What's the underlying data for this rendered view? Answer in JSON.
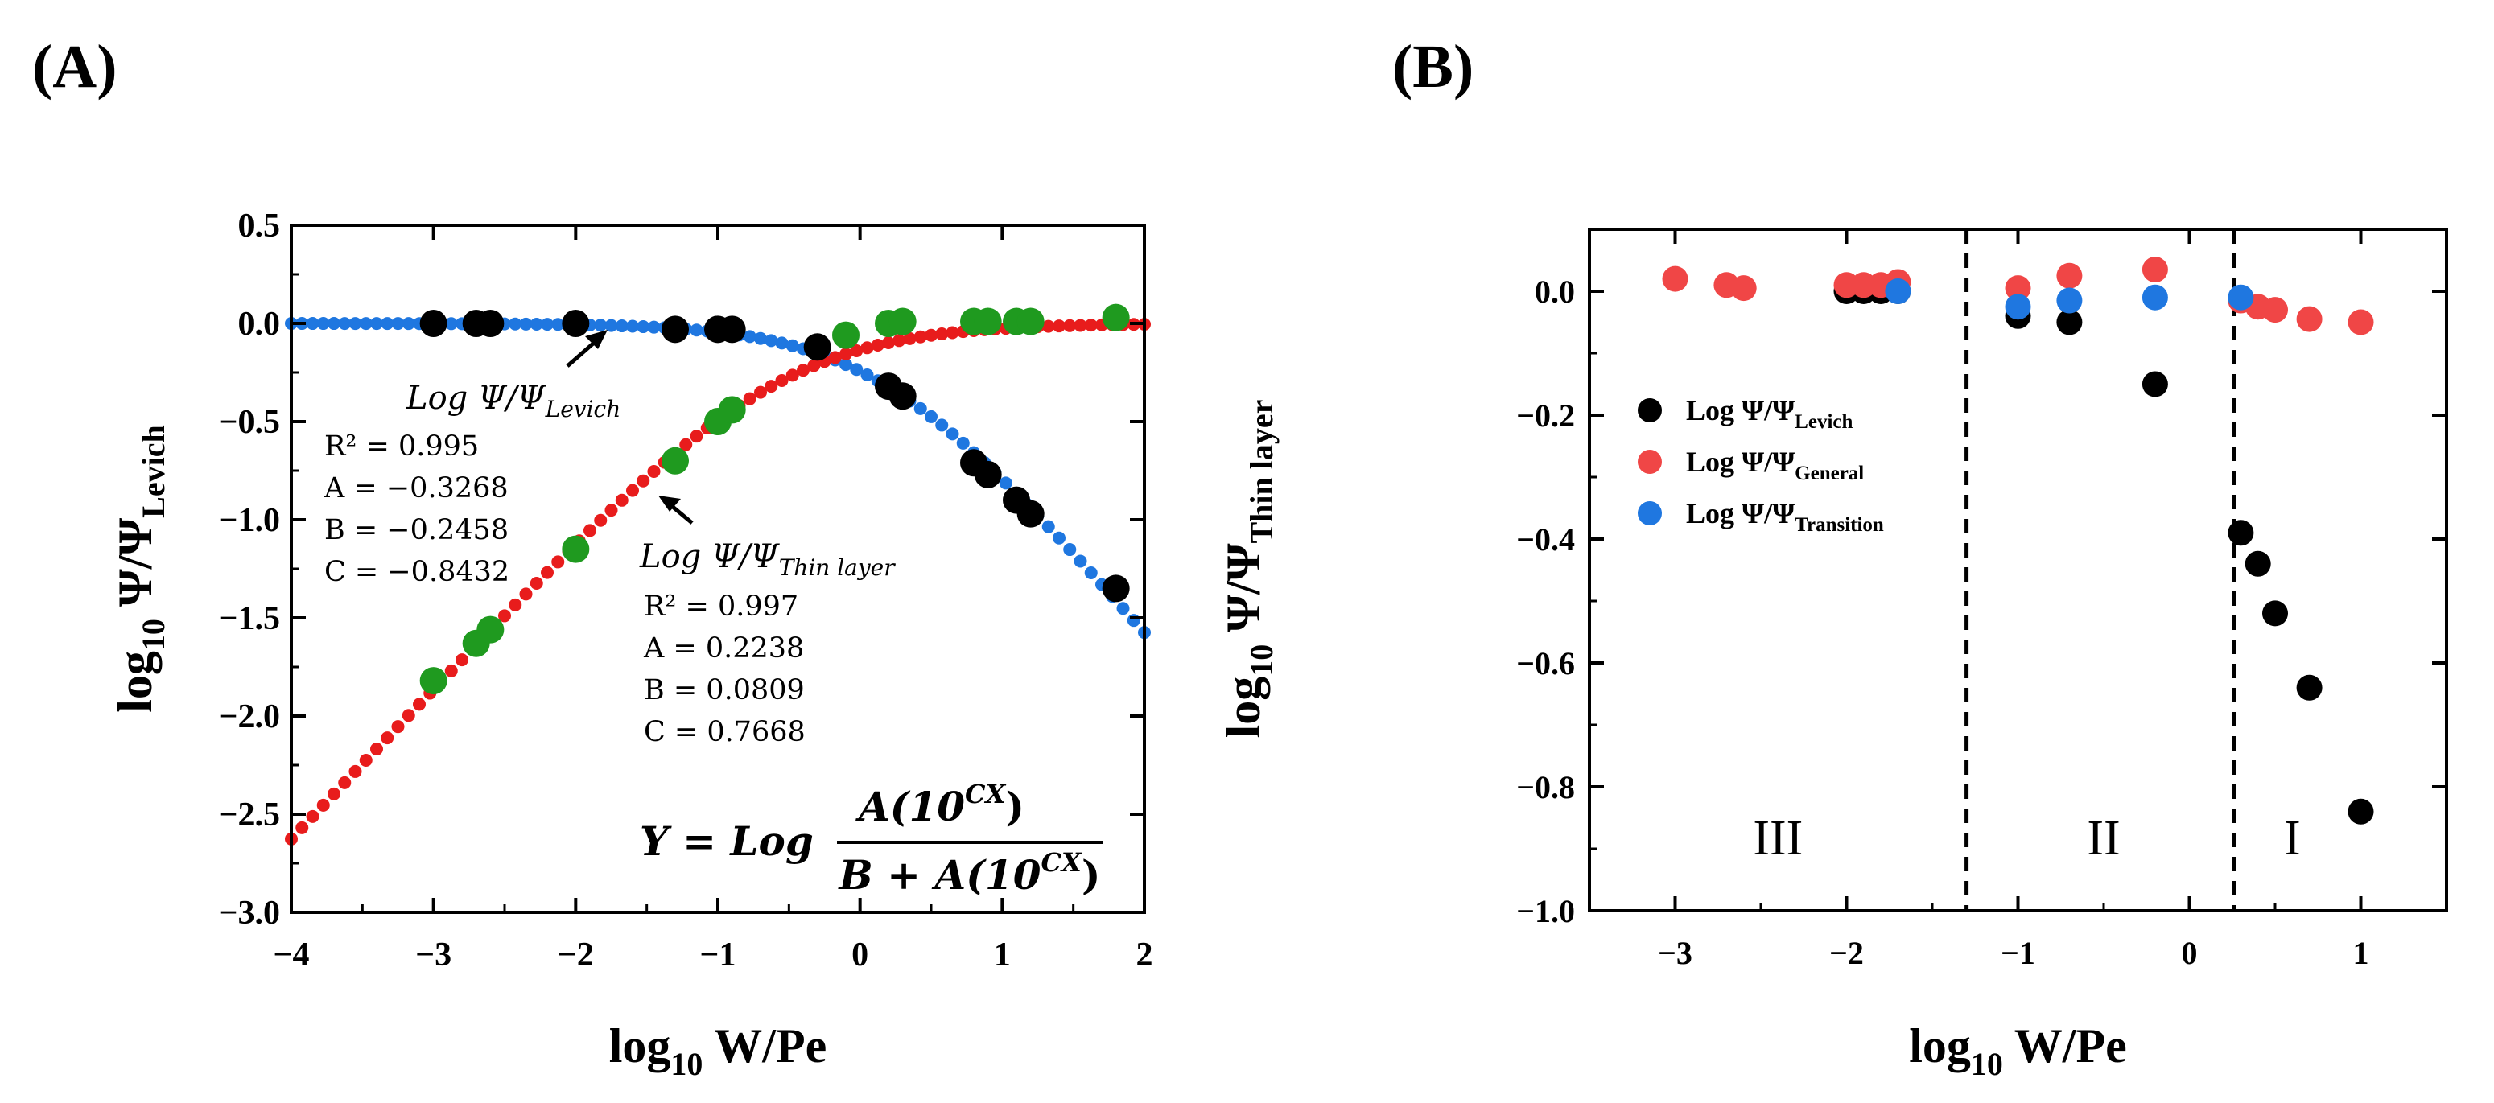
{
  "panel_labels": {
    "a": "(A)",
    "b": "(B)"
  },
  "chart_data": [
    {
      "type": "scatter",
      "panel": "(A)",
      "title": "",
      "xlabel": {
        "base": "log",
        "sub": "10",
        "rest": " W/Pe"
      },
      "ylabel_left": {
        "base": "log",
        "sub": "10",
        "rest": " Ψ/Ψ",
        "sub2": "Levich"
      },
      "ylabel_right": {
        "base": "log",
        "sub": "10",
        "rest": " Ψ/Ψ",
        "sub2": "Thin layer"
      },
      "xlim": [
        -4,
        2
      ],
      "ylim": [
        -3.0,
        0.5
      ],
      "xticks": [
        -4,
        -3,
        -2,
        -1,
        0,
        1,
        2
      ],
      "xtick_labels": [
        "−4",
        "−3",
        "−2",
        "−1",
        "0",
        "1",
        "2"
      ],
      "yticks": [
        0.5,
        0.0,
        -0.5,
        -1.0,
        -1.5,
        -2.0,
        -2.5,
        -3.0
      ],
      "ytick_labels": [
        "0.5",
        "0.0",
        "−0.5",
        "−1.0",
        "−1.5",
        "−2.0",
        "−2.5",
        "−3.0"
      ],
      "series": [
        {
          "name": "Levich fit",
          "color": "#1f77e0",
          "kind": "fit",
          "A": -0.3268,
          "B": -0.2458,
          "C": -0.8432
        },
        {
          "name": "Thin layer fit",
          "color": "#e81c1c",
          "kind": "fit",
          "A": 0.2238,
          "B": 0.0809,
          "C": 0.7668
        },
        {
          "name": "Levich data",
          "color": "#000000",
          "kind": "points",
          "x": [
            -3.0,
            -2.7,
            -2.6,
            -2.0,
            -1.3,
            -1.0,
            -0.9,
            -0.3,
            0.2,
            0.3,
            0.8,
            0.9,
            1.1,
            1.2,
            1.8
          ],
          "y": [
            0.0,
            0.0,
            0.0,
            0.0,
            -0.03,
            -0.03,
            -0.03,
            -0.12,
            -0.32,
            -0.37,
            -0.71,
            -0.77,
            -0.9,
            -0.97,
            -1.35
          ]
        },
        {
          "name": "Thin layer data",
          "color": "#1f9a1f",
          "kind": "points",
          "x": [
            -3.0,
            -2.7,
            -2.6,
            -2.0,
            -1.3,
            -1.0,
            -0.9,
            -0.1,
            0.2,
            0.3,
            0.8,
            0.9,
            1.1,
            1.2,
            1.8
          ],
          "y": [
            -1.82,
            -1.63,
            -1.56,
            -1.15,
            -0.7,
            -0.5,
            -0.44,
            -0.06,
            0.0,
            0.01,
            0.01,
            0.01,
            0.01,
            0.01,
            0.03
          ]
        }
      ],
      "annotations": {
        "levich_label": {
          "base": "Log Ψ/Ψ",
          "sub": "Levich"
        },
        "levich_stats": [
          "R² = 0.995",
          "A = −0.3268",
          "B = −0.2458",
          "C = −0.8432"
        ],
        "thin_label": {
          "base": "Log Ψ/Ψ",
          "sub": "Thin layer"
        },
        "thin_stats": [
          "R² = 0.997",
          "A = 0.2238",
          "B = 0.0809",
          "C = 0.7668"
        ],
        "equation": {
          "lhs": "Y = Log",
          "num_base": "A(10",
          "num_sup": "CX",
          "num_end": ")",
          "den_base": "B + A(10",
          "den_sup": "CX",
          "den_end": ")"
        }
      }
    },
    {
      "type": "scatter",
      "panel": "(B)",
      "title": "",
      "xlabel": {
        "base": "log",
        "sub": "10",
        "rest": " W/Pe"
      },
      "xlim": [
        -3.5,
        1.5
      ],
      "ylim": [
        -1.0,
        0.1
      ],
      "xticks": [
        -3,
        -2,
        -1,
        0,
        1
      ],
      "xtick_labels": [
        "−3",
        "−2",
        "−1",
        "0",
        "1"
      ],
      "yticks": [
        0.0,
        -0.2,
        -0.4,
        -0.6,
        -0.8,
        -1.0
      ],
      "ytick_labels": [
        "0.0",
        "−0.2",
        "−0.4",
        "−0.6",
        "−0.8",
        "−1.0"
      ],
      "dividers_x": [
        -1.3,
        0.26
      ],
      "regions": [
        {
          "label": "III",
          "x": -2.4
        },
        {
          "label": "II",
          "x": -0.5
        },
        {
          "label": "I",
          "x": 0.6
        }
      ],
      "legend_position": "left-middle",
      "series": [
        {
          "name": "Log Ψ/Ψ",
          "sub": "Levich",
          "color": "#000000",
          "x": [
            -2.0,
            -1.9,
            -1.8,
            -1.7,
            -1.0,
            -0.7,
            -0.2,
            0.3,
            0.4,
            0.5,
            0.7,
            1.0
          ],
          "y": [
            0.0,
            0.0,
            0.0,
            0.0,
            -0.04,
            -0.05,
            -0.15,
            -0.39,
            -0.44,
            -0.52,
            -0.64,
            -0.84
          ]
        },
        {
          "name": "Log Ψ/Ψ",
          "sub": "General",
          "color": "#f04646",
          "x": [
            -3.0,
            -2.7,
            -2.6,
            -2.0,
            -1.9,
            -1.8,
            -1.7,
            -1.0,
            -0.7,
            -0.2,
            0.3,
            0.4,
            0.5,
            0.7,
            1.0
          ],
          "y": [
            0.02,
            0.01,
            0.005,
            0.01,
            0.01,
            0.01,
            0.015,
            0.005,
            0.025,
            0.035,
            -0.015,
            -0.025,
            -0.03,
            -0.045,
            -0.05
          ]
        },
        {
          "name": "Log Ψ/Ψ",
          "sub": "Transition",
          "color": "#1f77e0",
          "x": [
            -1.7,
            -1.0,
            -0.7,
            -0.2,
            0.3
          ],
          "y": [
            0.0,
            -0.025,
            -0.015,
            -0.01,
            -0.01
          ]
        }
      ]
    }
  ]
}
